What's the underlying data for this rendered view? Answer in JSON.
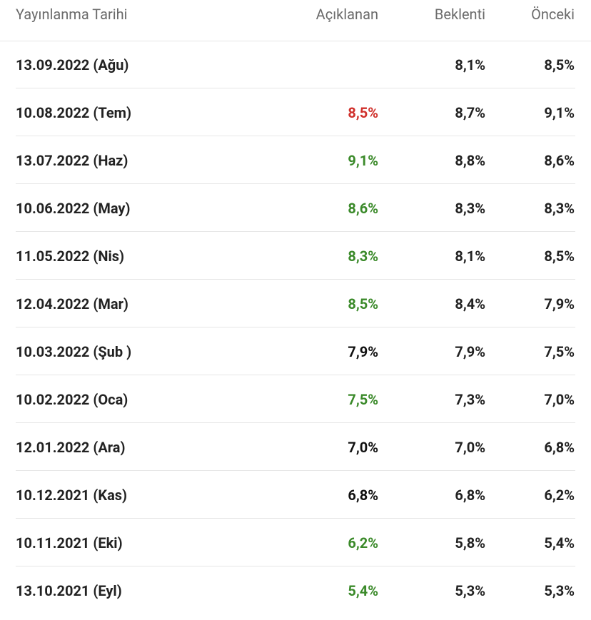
{
  "table": {
    "header": [
      "Yayınlanma Tarihi",
      "Açıklanan",
      "Beklenti",
      "Önceki"
    ],
    "rows": [
      {
        "date": "13.09.2022 (Ağu)",
        "actual": null,
        "actual_color": null,
        "forecast": "8,1%",
        "previous": "8,5%"
      },
      {
        "date": "10.08.2022 (Tem)",
        "actual": "8,5%",
        "actual_color": "#d0302b",
        "forecast": "8,7%",
        "previous": "9,1%"
      },
      {
        "date": "13.07.2022 (Haz)",
        "actual": "9,1%",
        "actual_color": "#3b8a2a",
        "forecast": "8,8%",
        "previous": "8,6%"
      },
      {
        "date": "10.06.2022 (May)",
        "actual": "8,6%",
        "actual_color": "#3b8a2a",
        "forecast": "8,3%",
        "previous": "8,3%"
      },
      {
        "date": "11.05.2022 (Nis)",
        "actual": "8,3%",
        "actual_color": "#3b8a2a",
        "forecast": "8,1%",
        "previous": "8,5%"
      },
      {
        "date": "12.04.2022 (Mar)",
        "actual": "8,5%",
        "actual_color": "#3b8a2a",
        "forecast": "8,4%",
        "previous": "7,9%"
      },
      {
        "date": "10.03.2022 (Şub )",
        "actual": "7,9%",
        "actual_color": "#111111",
        "forecast": "7,9%",
        "previous": "7,5%"
      },
      {
        "date": "10.02.2022 (Oca)",
        "actual": "7,5%",
        "actual_color": "#3b8a2a",
        "forecast": "7,3%",
        "previous": "7,0%"
      },
      {
        "date": "12.01.2022 (Ara)",
        "actual": "7,0%",
        "actual_color": "#111111",
        "forecast": "7,0%",
        "previous": "6,8%"
      },
      {
        "date": "10.12.2021 (Kas)",
        "actual": "6,8%",
        "actual_color": "#111111",
        "forecast": "6,8%",
        "previous": "6,2%"
      },
      {
        "date": "10.11.2021 (Eki)",
        "actual": "6,2%",
        "actual_color": "#3b8a2a",
        "forecast": "5,8%",
        "previous": "5,4%"
      },
      {
        "date": "13.10.2021 (Eyl)",
        "actual": "5,4%",
        "actual_color": "#3b8a2a",
        "forecast": "5,3%",
        "previous": "5,3%"
      }
    ]
  }
}
